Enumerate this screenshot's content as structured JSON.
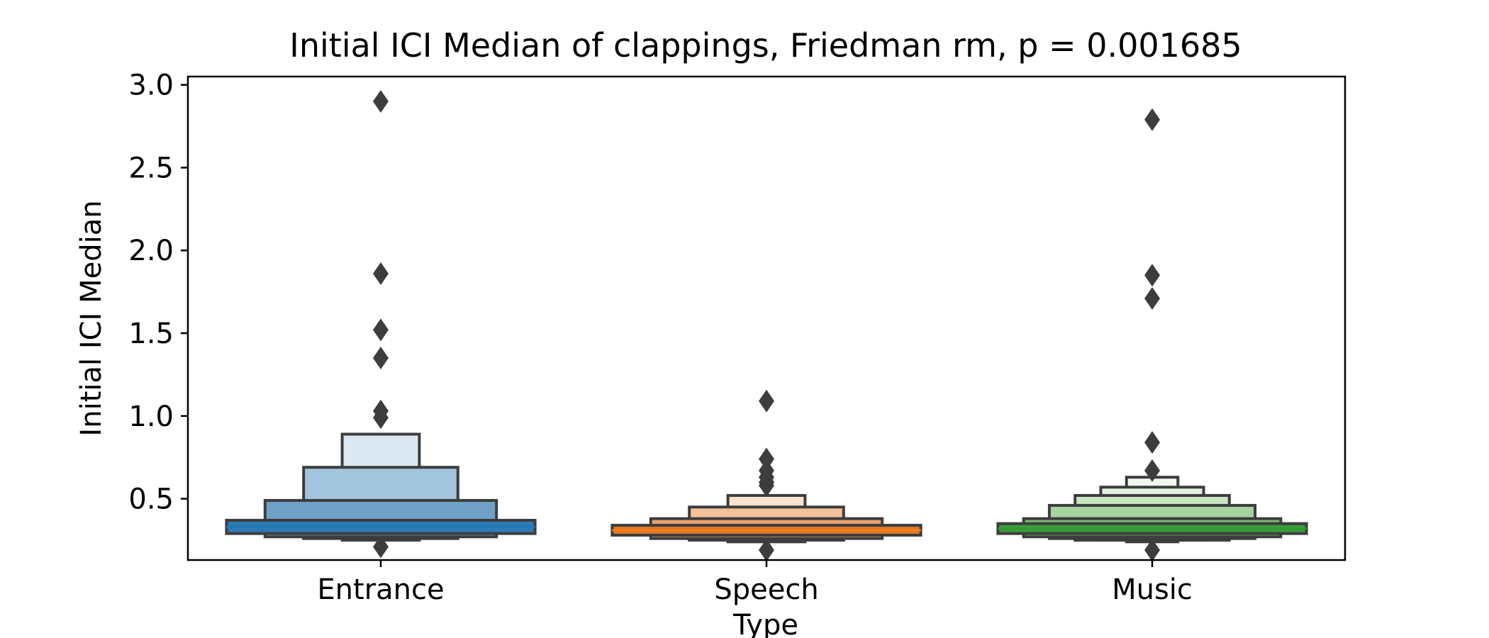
{
  "chart_data": {
    "type": "boxenplot",
    "title": "Initial ICI Median of clappings, Friedman rm, p = 0.001685",
    "xlabel": "Type",
    "ylabel": "Initial ICI Median",
    "ylim": [
      0.13,
      3.05
    ],
    "yticks": [
      0.5,
      1.0,
      1.5,
      2.0,
      2.5,
      3.0
    ],
    "ytick_labels": [
      "0.5",
      "1.0",
      "1.5",
      "2.0",
      "2.5",
      "3.0"
    ],
    "categories": [
      "Entrance",
      "Speech",
      "Music"
    ],
    "grid": false,
    "legend": "none",
    "series": [
      {
        "category": "Entrance",
        "color": "#1f77b4",
        "median": 0.33,
        "boxes": [
          {
            "low": 0.29,
            "high": 0.37,
            "color": "#2e7ab5"
          },
          {
            "low": 0.27,
            "high": 0.49,
            "color": "#6fa1c6"
          },
          {
            "low": 0.26,
            "high": 0.69,
            "color": "#a3c4dd"
          },
          {
            "low": 0.25,
            "high": 0.89,
            "color": "#dce9f2"
          }
        ],
        "outliers": [
          0.21,
          0.99,
          1.03,
          1.35,
          1.52,
          1.86,
          2.9
        ]
      },
      {
        "category": "Speech",
        "color": "#ff7f0e",
        "median": 0.31,
        "boxes": [
          {
            "low": 0.28,
            "high": 0.34,
            "color": "#d9792f"
          },
          {
            "low": 0.26,
            "high": 0.38,
            "color": "#e9a36c"
          },
          {
            "low": 0.25,
            "high": 0.45,
            "color": "#f3c29a"
          },
          {
            "low": 0.24,
            "high": 0.52,
            "color": "#fbe3cf"
          }
        ],
        "outliers": [
          0.19,
          0.58,
          0.6,
          0.63,
          0.67,
          0.74,
          1.09
        ]
      },
      {
        "category": "Music",
        "color": "#2ca02c",
        "median": 0.32,
        "boxes": [
          {
            "low": 0.29,
            "high": 0.35,
            "color": "#3e9a3f"
          },
          {
            "low": 0.27,
            "high": 0.38,
            "color": "#7cbc78"
          },
          {
            "low": 0.26,
            "high": 0.46,
            "color": "#a5d49e"
          },
          {
            "low": 0.25,
            "high": 0.52,
            "color": "#c8e6c1"
          },
          {
            "low": 0.25,
            "high": 0.57,
            "color": "#e2f2de"
          },
          {
            "low": 0.24,
            "high": 0.63,
            "color": "#f1f9ef"
          }
        ],
        "outliers": [
          0.19,
          0.67,
          0.84,
          1.71,
          1.85,
          2.79
        ]
      }
    ],
    "outlier_color": "#3d3d3d",
    "edge_color": "#3d3d3d"
  }
}
